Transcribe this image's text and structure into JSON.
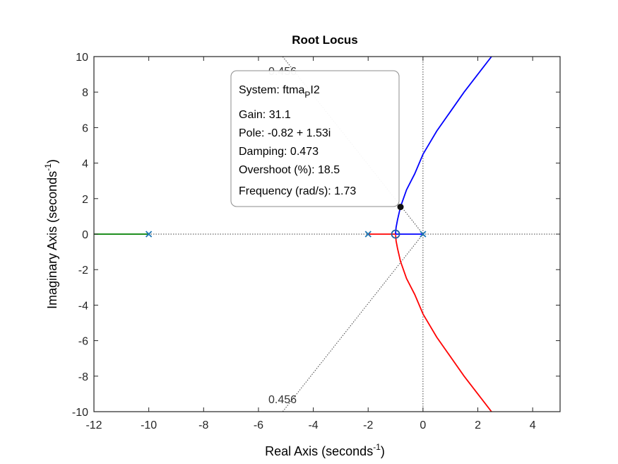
{
  "chart_data": {
    "type": "root-locus",
    "title": "Root Locus",
    "xlabel": "Real Axis (seconds",
    "ylabel": "Imaginary Axis (seconds",
    "label_exponent": "-1",
    "label_close": ")",
    "xlim": [
      -12,
      5
    ],
    "ylim": [
      -10,
      10
    ],
    "xticks": [
      -12,
      -10,
      -8,
      -6,
      -4,
      -2,
      0,
      2,
      4
    ],
    "yticks": [
      -10,
      -8,
      -6,
      -4,
      -2,
      0,
      2,
      4,
      6,
      8,
      10
    ],
    "grid": "off",
    "poles": [
      {
        "re": -10,
        "im": 0
      },
      {
        "re": -2,
        "im": 0
      },
      {
        "re": 0,
        "im": 0
      }
    ],
    "zeros": [
      {
        "re": -1,
        "im": 0
      }
    ],
    "branches": [
      {
        "color": "#008000",
        "points": [
          [
            -10,
            0
          ],
          [
            -12,
            0
          ]
        ]
      },
      {
        "color": "#ff0000",
        "points": [
          [
            -2,
            0
          ],
          [
            -1,
            0
          ]
        ]
      },
      {
        "color": "#0000ff",
        "points": [
          [
            0,
            0
          ],
          [
            -0.98,
            0
          ],
          [
            -1.0,
            0.05
          ],
          [
            -0.98,
            0.38
          ],
          [
            -0.93,
            0.8
          ],
          [
            -0.87,
            1.2
          ],
          [
            -0.82,
            1.53
          ],
          [
            -0.6,
            2.5
          ],
          [
            -0.3,
            3.4
          ],
          [
            0,
            4.5
          ],
          [
            0.5,
            5.8
          ],
          [
            1,
            6.9
          ],
          [
            1.5,
            8.0
          ],
          [
            2,
            9.0
          ],
          [
            2.5,
            10
          ]
        ]
      },
      {
        "color": "#ff0000",
        "points": [
          [
            -1.0,
            -0.05
          ],
          [
            -0.98,
            -0.38
          ],
          [
            -0.93,
            -0.8
          ],
          [
            -0.87,
            -1.2
          ],
          [
            -0.82,
            -1.53
          ],
          [
            -0.6,
            -2.5
          ],
          [
            -0.3,
            -3.4
          ],
          [
            0,
            -4.5
          ],
          [
            0.5,
            -5.8
          ],
          [
            1,
            -6.9
          ],
          [
            1.5,
            -8.0
          ],
          [
            2,
            -9.0
          ],
          [
            2.5,
            -10
          ]
        ]
      }
    ],
    "damping_line": {
      "label": "0.456",
      "slope_deg_from_neg_real": 62.9
    },
    "marker": {
      "re": -0.82,
      "im": 1.53
    },
    "datatip": {
      "system_prefix": "System: ftma",
      "system_sub": "P",
      "system_suffix": "I2",
      "gain": "Gain: 31.1",
      "pole": "Pole: -0.82 + 1.53i",
      "damping": "Damping: 0.473",
      "overshoot": "Overshoot (%): 18.5",
      "frequency": "Frequency (rad/s): 1.73"
    },
    "colors": {
      "pole_marker": "#1f77b4",
      "zero_marker": "#1f5fa0",
      "axes": "#262626"
    }
  }
}
